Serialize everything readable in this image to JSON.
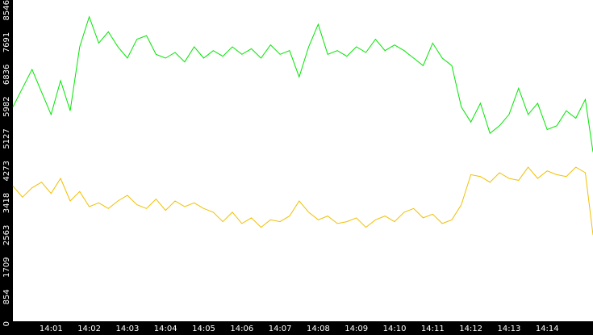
{
  "chart_data": {
    "type": "line",
    "x": [
      0,
      0.25,
      0.5,
      0.75,
      1,
      1.25,
      1.5,
      1.75,
      2,
      2.25,
      2.5,
      2.75,
      3,
      3.25,
      3.5,
      3.75,
      4,
      4.25,
      4.5,
      4.75,
      5,
      5.25,
      5.5,
      5.75,
      6,
      6.25,
      6.5,
      6.75,
      7,
      7.25,
      7.5,
      7.75,
      8,
      8.25,
      8.5,
      8.75,
      9,
      9.25,
      9.5,
      9.75,
      10,
      10.25,
      10.5,
      10.75,
      11,
      11.25,
      11.5,
      11.75,
      12,
      12.25,
      12.5,
      12.75,
      13,
      13.25,
      13.5,
      13.75,
      14,
      14.25,
      14.5,
      14.75,
      15,
      15.2
    ],
    "series": [
      {
        "color": "#00e600",
        "values": [
          5700,
          6200,
          6700,
          6100,
          5500,
          6400,
          5600,
          7300,
          8100,
          7400,
          7700,
          7300,
          7000,
          7500,
          7600,
          7100,
          7000,
          7150,
          6900,
          7300,
          7000,
          7200,
          7050,
          7300,
          7100,
          7250,
          7000,
          7350,
          7100,
          7200,
          6500,
          7300,
          7900,
          7100,
          7200,
          7050,
          7300,
          7150,
          7500,
          7200,
          7350,
          7200,
          7000,
          6800,
          7400,
          7000,
          6800,
          5700,
          5300,
          5800,
          5000,
          5200,
          5500,
          6200,
          5500,
          5800,
          5100,
          5200,
          5600,
          5400,
          5900,
          4500
        ]
      },
      {
        "color": "#f0c000",
        "values": [
          3600,
          3300,
          3550,
          3700,
          3400,
          3800,
          3200,
          3450,
          3050,
          3150,
          3000,
          3200,
          3350,
          3100,
          3000,
          3250,
          2950,
          3200,
          3050,
          3150,
          3000,
          2900,
          2650,
          2900,
          2600,
          2750,
          2500,
          2700,
          2650,
          2800,
          3200,
          2900,
          2700,
          2800,
          2600,
          2650,
          2750,
          2500,
          2700,
          2800,
          2650,
          2900,
          3000,
          2750,
          2850,
          2600,
          2700,
          3100,
          3900,
          3850,
          3700,
          3950,
          3800,
          3750,
          4100,
          3800,
          4000,
          3900,
          3850,
          4100,
          3950,
          2300
        ]
      }
    ],
    "xlim": [
      0,
      15.2
    ],
    "xticks": [
      {
        "value": 1,
        "label": "14:01"
      },
      {
        "value": 2,
        "label": "14:02"
      },
      {
        "value": 3,
        "label": "14:03"
      },
      {
        "value": 4,
        "label": "14:04"
      },
      {
        "value": 5,
        "label": "14:05"
      },
      {
        "value": 6,
        "label": "14:06"
      },
      {
        "value": 7,
        "label": "14:07"
      },
      {
        "value": 8,
        "label": "14:08"
      },
      {
        "value": 9,
        "label": "14:09"
      },
      {
        "value": 10,
        "label": "14:10"
      },
      {
        "value": 11,
        "label": "14:11"
      },
      {
        "value": 12,
        "label": "14:12"
      },
      {
        "value": 13,
        "label": "14:13"
      },
      {
        "value": 14,
        "label": "14:14"
      }
    ],
    "ylim": [
      0,
      8546
    ],
    "yticks": [
      0,
      854,
      1709,
      2563,
      3418,
      4273,
      5127,
      5982,
      6836,
      7691,
      8546
    ]
  }
}
